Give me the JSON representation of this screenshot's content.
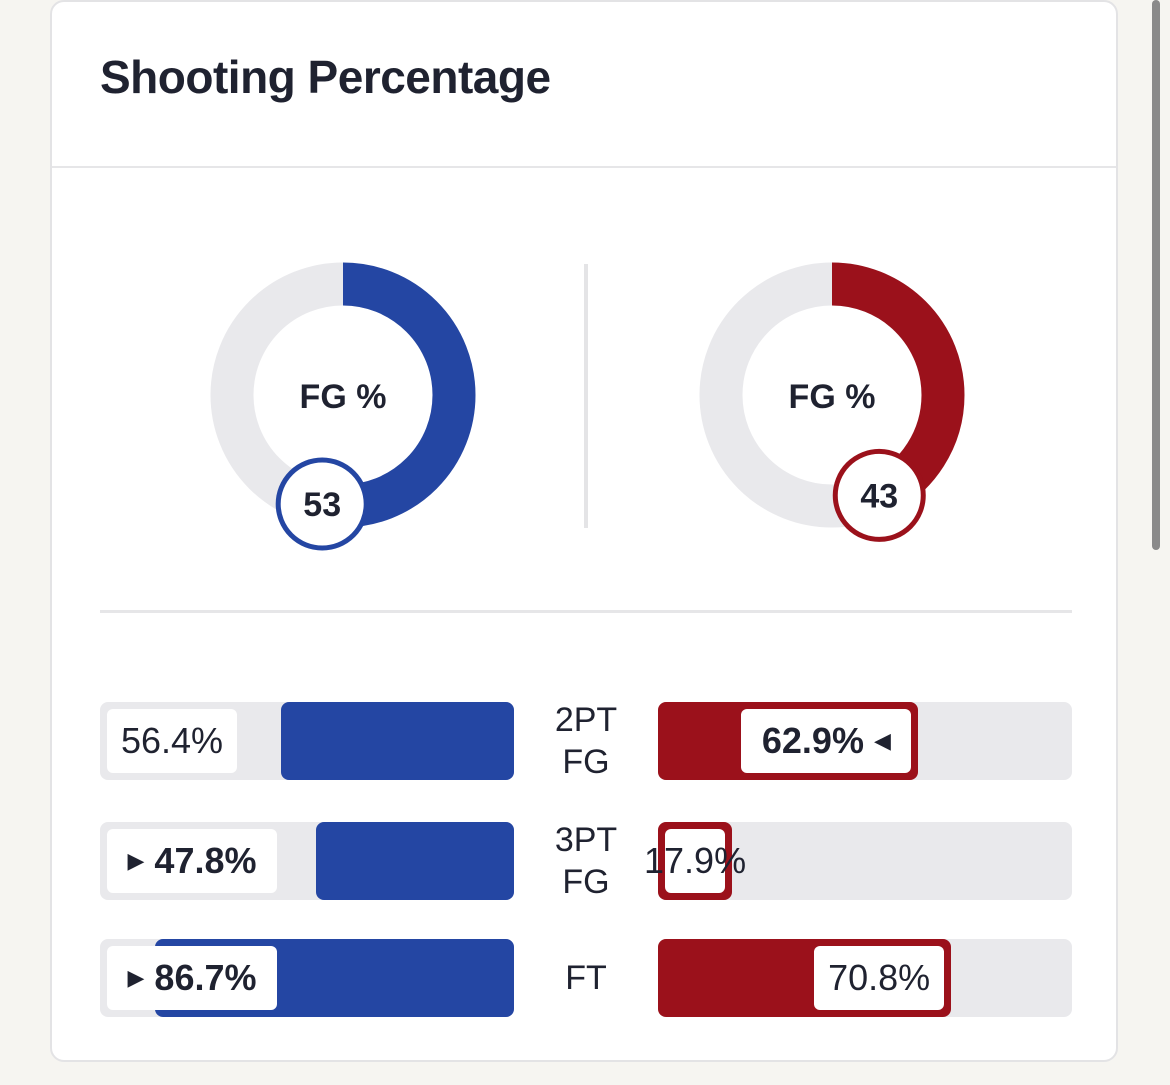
{
  "card": {
    "title": "Shooting Percentage"
  },
  "colors": {
    "team_a": "#2446a3",
    "team_b": "#9b111b",
    "track": "#e9e9ec"
  },
  "chart_data": [
    {
      "type": "pie",
      "label": "FG %",
      "teams": [
        {
          "value": 53,
          "color": "#2446a3"
        },
        {
          "value": 43,
          "color": "#9b111b"
        }
      ]
    },
    {
      "type": "bar",
      "categories": [
        "2PT FG",
        "3PT FG",
        "FT"
      ],
      "category_lines": [
        [
          "2PT",
          "FG"
        ],
        [
          "3PT",
          "FG"
        ],
        [
          "FT"
        ]
      ],
      "series": [
        {
          "values": [
            56.4,
            47.8,
            86.7
          ],
          "labels": [
            "56.4%",
            "47.8%",
            "86.7%"
          ],
          "leader": [
            false,
            true,
            true
          ],
          "color": "#2446a3"
        },
        {
          "values": [
            62.9,
            17.9,
            70.8
          ],
          "labels": [
            "62.9%",
            "17.9%",
            "70.8%"
          ],
          "leader": [
            true,
            false,
            false
          ],
          "color": "#9b111b"
        }
      ],
      "ylim": [
        0,
        100
      ]
    }
  ]
}
